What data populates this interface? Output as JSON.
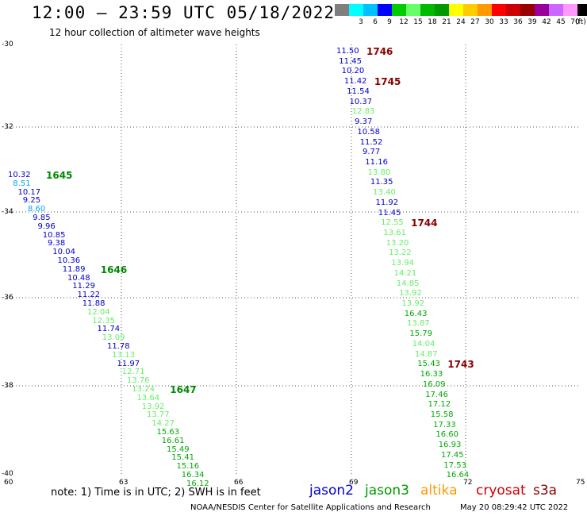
{
  "header": {
    "title": "12:00 – 23:59 UTC 05/18/2022",
    "subtitle": "12 hour collection of altimeter wave heights"
  },
  "color_scale": {
    "unit": "(ft)",
    "bins": [
      {
        "label": "",
        "color": "#7f7f7f"
      },
      {
        "label": "3",
        "color": "#00ffff"
      },
      {
        "label": "6",
        "color": "#00c0ff"
      },
      {
        "label": "9",
        "color": "#0000ff"
      },
      {
        "label": "12",
        "color": "#00cc00"
      },
      {
        "label": "15",
        "color": "#66ff66"
      },
      {
        "label": "18",
        "color": "#00bb00"
      },
      {
        "label": "21",
        "color": "#009900"
      },
      {
        "label": "24",
        "color": "#ffff00"
      },
      {
        "label": "27",
        "color": "#ffcc00"
      },
      {
        "label": "30",
        "color": "#ff9900"
      },
      {
        "label": "33",
        "color": "#ff0000"
      },
      {
        "label": "36",
        "color": "#cc0000"
      },
      {
        "label": "39",
        "color": "#990000"
      },
      {
        "label": "42",
        "color": "#990099"
      },
      {
        "label": "45",
        "color": "#cc66ff"
      },
      {
        "label": "70",
        "color": "#ff99ff"
      },
      {
        "label": "",
        "color": "#000000"
      }
    ]
  },
  "map": {
    "lat_ticks": [
      "-30",
      "-32",
      "-34",
      "-36",
      "-38",
      "-40"
    ],
    "lon_ticks": [
      "60",
      "63",
      "66",
      "69",
      "72",
      "75"
    ]
  },
  "tracks": [
    {
      "id": "west",
      "time_labels": [
        {
          "text": "1645",
          "color": "#008800",
          "row": 0
        },
        {
          "text": "1646",
          "color": "#008800",
          "row": 11
        },
        {
          "text": "1647",
          "color": "#008800",
          "row": 25
        }
      ],
      "observations": [
        {
          "value": "10.32",
          "color": "#0000cc"
        },
        {
          "value": "8.51",
          "color": "#00aaee"
        },
        {
          "value": "10.17",
          "color": "#0000cc"
        },
        {
          "value": "9.25",
          "color": "#0000cc"
        },
        {
          "value": "8.60",
          "color": "#00aaee"
        },
        {
          "value": "9.85",
          "color": "#0000cc"
        },
        {
          "value": "9.96",
          "color": "#0000cc"
        },
        {
          "value": "10.85",
          "color": "#0000cc"
        },
        {
          "value": "9.38",
          "color": "#0000cc"
        },
        {
          "value": "10.04",
          "color": "#0000cc"
        },
        {
          "value": "10.36",
          "color": "#0000cc"
        },
        {
          "value": "11.89",
          "color": "#0000cc"
        },
        {
          "value": "10.48",
          "color": "#0000cc"
        },
        {
          "value": "11.29",
          "color": "#0000cc"
        },
        {
          "value": "11.22",
          "color": "#0000cc"
        },
        {
          "value": "11.88",
          "color": "#0000cc"
        },
        {
          "value": "12.04",
          "color": "#66ee66"
        },
        {
          "value": "12.35",
          "color": "#66ee66"
        },
        {
          "value": "11.74",
          "color": "#0000cc"
        },
        {
          "value": "13.09",
          "color": "#66ee66"
        },
        {
          "value": "11.78",
          "color": "#0000cc"
        },
        {
          "value": "13.13",
          "color": "#66ee66"
        },
        {
          "value": "11.97",
          "color": "#0000cc"
        },
        {
          "value": "12.71",
          "color": "#66ee66"
        },
        {
          "value": "13.76",
          "color": "#66ee66"
        },
        {
          "value": "13.24",
          "color": "#66ee66"
        },
        {
          "value": "13.64",
          "color": "#66ee66"
        },
        {
          "value": "13.92",
          "color": "#66ee66"
        },
        {
          "value": "13.77",
          "color": "#66ee66"
        },
        {
          "value": "14.27",
          "color": "#66ee66"
        },
        {
          "value": "15.63",
          "color": "#00aa00"
        },
        {
          "value": "16.61",
          "color": "#00aa00"
        },
        {
          "value": "15.49",
          "color": "#00aa00"
        },
        {
          "value": "15.41",
          "color": "#00aa00"
        },
        {
          "value": "15.16",
          "color": "#00aa00"
        },
        {
          "value": "16.34",
          "color": "#00aa00"
        },
        {
          "value": "16.12",
          "color": "#00aa00"
        }
      ]
    },
    {
      "id": "east",
      "time_labels": [
        {
          "text": "1746",
          "color": "#880000",
          "row": 0
        },
        {
          "text": "1745",
          "color": "#880000",
          "row": 3
        },
        {
          "text": "1744",
          "color": "#880000",
          "row": 17
        },
        {
          "text": "1743",
          "color": "#880000",
          "row": 31
        }
      ],
      "observations": [
        {
          "value": "11.50",
          "color": "#0000cc"
        },
        {
          "value": "11.45",
          "color": "#0000cc"
        },
        {
          "value": "10.20",
          "color": "#0000cc"
        },
        {
          "value": "11.42",
          "color": "#0000cc"
        },
        {
          "value": "11.54",
          "color": "#0000cc"
        },
        {
          "value": "10.37",
          "color": "#0000cc"
        },
        {
          "value": "12.83",
          "color": "#66ee66"
        },
        {
          "value": "9.37",
          "color": "#0000cc"
        },
        {
          "value": "10.58",
          "color": "#0000cc"
        },
        {
          "value": "11.52",
          "color": "#0000cc"
        },
        {
          "value": "9.77",
          "color": "#0000cc"
        },
        {
          "value": "11.16",
          "color": "#0000cc"
        },
        {
          "value": "13.80",
          "color": "#66ee66"
        },
        {
          "value": "11.35",
          "color": "#0000cc"
        },
        {
          "value": "13.40",
          "color": "#66ee66"
        },
        {
          "value": "11.92",
          "color": "#0000cc"
        },
        {
          "value": "11.45",
          "color": "#0000cc"
        },
        {
          "value": "12.55",
          "color": "#66ee66"
        },
        {
          "value": "13.61",
          "color": "#66ee66"
        },
        {
          "value": "13.20",
          "color": "#66ee66"
        },
        {
          "value": "13.22",
          "color": "#66ee66"
        },
        {
          "value": "13.94",
          "color": "#66ee66"
        },
        {
          "value": "14.21",
          "color": "#66ee66"
        },
        {
          "value": "14.85",
          "color": "#66ee66"
        },
        {
          "value": "13.92",
          "color": "#66ee66"
        },
        {
          "value": "13.92",
          "color": "#66ee66"
        },
        {
          "value": "16.43",
          "color": "#00aa00"
        },
        {
          "value": "13.87",
          "color": "#66ee66"
        },
        {
          "value": "15.79",
          "color": "#00aa00"
        },
        {
          "value": "14.04",
          "color": "#66ee66"
        },
        {
          "value": "14.87",
          "color": "#66ee66"
        },
        {
          "value": "15.43",
          "color": "#00aa00"
        },
        {
          "value": "16.33",
          "color": "#00aa00"
        },
        {
          "value": "16.09",
          "color": "#00aa00"
        },
        {
          "value": "17.46",
          "color": "#00aa00"
        },
        {
          "value": "17.12",
          "color": "#00aa00"
        },
        {
          "value": "15.58",
          "color": "#00aa00"
        },
        {
          "value": "17.33",
          "color": "#00aa00"
        },
        {
          "value": "16.60",
          "color": "#00aa00"
        },
        {
          "value": "16.93",
          "color": "#00aa00"
        },
        {
          "value": "17.45",
          "color": "#00aa00"
        },
        {
          "value": "17.53",
          "color": "#00aa00"
        },
        {
          "value": "16.64",
          "color": "#00aa00"
        }
      ]
    }
  ],
  "note": "note: 1) Time is in UTC; 2) SWH is in feet",
  "satellites": [
    {
      "name": "jason2",
      "color": "#0000cc"
    },
    {
      "name": "jason3",
      "color": "#009900"
    },
    {
      "name": "altika",
      "color": "#ff9900"
    },
    {
      "name": "cryosat",
      "color": "#cc0000"
    },
    {
      "name": "s3a",
      "color": "#880000"
    }
  ],
  "footer": {
    "credit": "NOAA/NESDIS Center for Satellite Applications and Research",
    "generated": "May 20 08:29:42 UTC 2022"
  }
}
